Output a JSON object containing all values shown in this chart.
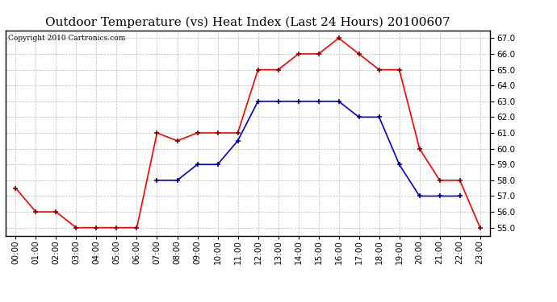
{
  "title": "Outdoor Temperature (vs) Heat Index (Last 24 Hours) 20100607",
  "copyright_text": "Copyright 2010 Cartronics.com",
  "hours": [
    0,
    1,
    2,
    3,
    4,
    5,
    6,
    7,
    8,
    9,
    10,
    11,
    12,
    13,
    14,
    15,
    16,
    17,
    18,
    19,
    20,
    21,
    22,
    23
  ],
  "x_labels": [
    "00:00",
    "01:00",
    "02:00",
    "03:00",
    "04:00",
    "05:00",
    "06:00",
    "07:00",
    "08:00",
    "09:00",
    "10:00",
    "11:00",
    "12:00",
    "13:00",
    "14:00",
    "15:00",
    "16:00",
    "17:00",
    "18:00",
    "19:00",
    "20:00",
    "21:00",
    "22:00",
    "23:00"
  ],
  "red_temp": [
    57.5,
    56.0,
    56.0,
    55.0,
    55.0,
    55.0,
    55.0,
    61.0,
    60.5,
    61.0,
    61.0,
    61.0,
    65.0,
    65.0,
    66.0,
    66.0,
    67.0,
    66.0,
    65.0,
    65.0,
    60.0,
    58.0,
    58.0,
    55.0
  ],
  "blue_heat": [
    null,
    null,
    null,
    null,
    null,
    null,
    null,
    58.0,
    58.0,
    59.0,
    59.0,
    60.5,
    63.0,
    63.0,
    63.0,
    63.0,
    63.0,
    62.0,
    62.0,
    59.0,
    57.0,
    57.0,
    57.0,
    null
  ],
  "red_color": "#ff0000",
  "blue_color": "#0000cc",
  "bg_color": "#ffffff",
  "grid_color": "#bbbbbb",
  "ylim": [
    54.5,
    67.5
  ],
  "yticks": [
    55.0,
    56.0,
    57.0,
    58.0,
    59.0,
    60.0,
    61.0,
    62.0,
    63.0,
    64.0,
    65.0,
    66.0,
    67.0
  ],
  "title_fontsize": 11,
  "copyright_fontsize": 6.5,
  "tick_fontsize": 7.5,
  "ytick_fontsize": 7.5
}
